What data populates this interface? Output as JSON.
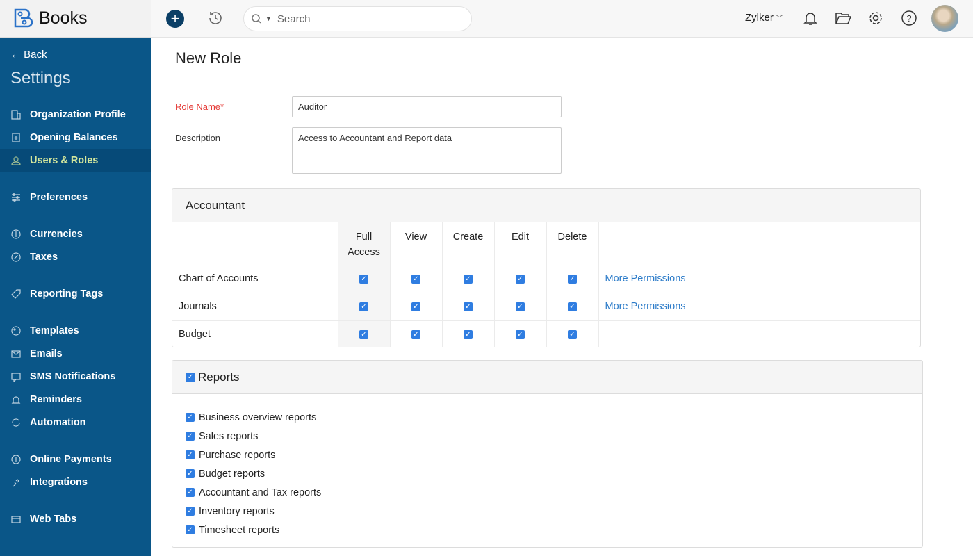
{
  "app": {
    "name": "Books",
    "brand_color": "#0a5688",
    "accent": "#2f7de1"
  },
  "topbar": {
    "search_placeholder": "Search",
    "org": "Zylker",
    "icons": [
      "plus-icon",
      "history-icon",
      "search-icon",
      "bell-icon",
      "folder-icon",
      "gear-icon",
      "help-icon",
      "avatar"
    ]
  },
  "sidebar": {
    "back": "Back",
    "title": "Settings",
    "items": [
      {
        "label": "Organization Profile",
        "icon": "building-icon"
      },
      {
        "label": "Opening Balances",
        "icon": "ledger-icon"
      },
      {
        "label": "Users & Roles",
        "icon": "users-icon",
        "active": true
      },
      {
        "label": "Preferences",
        "icon": "sliders-icon"
      },
      {
        "label": "Currencies",
        "icon": "currency-icon"
      },
      {
        "label": "Taxes",
        "icon": "percent-icon"
      },
      {
        "label": "Reporting Tags",
        "icon": "tag-icon"
      },
      {
        "label": "Templates",
        "icon": "palette-icon"
      },
      {
        "label": "Emails",
        "icon": "mail-icon"
      },
      {
        "label": "SMS Notifications",
        "icon": "sms-icon"
      },
      {
        "label": "Reminders",
        "icon": "bell-icon"
      },
      {
        "label": "Automation",
        "icon": "refresh-icon"
      },
      {
        "label": "Online Payments",
        "icon": "dollar-icon"
      },
      {
        "label": "Integrations",
        "icon": "plug-icon"
      },
      {
        "label": "Web Tabs",
        "icon": "tabs-icon"
      }
    ]
  },
  "page": {
    "title": "New Role",
    "role_name_label": "Role Name*",
    "role_name_value": "Auditor",
    "description_label": "Description",
    "description_value": "Access to Accountant and Report data"
  },
  "accountant": {
    "title": "Accountant",
    "columns": [
      "Full Access",
      "View",
      "Create",
      "Edit",
      "Delete"
    ],
    "rows": [
      {
        "name": "Chart of Accounts",
        "checked": [
          true,
          true,
          true,
          true,
          true
        ],
        "link": "More Permissions"
      },
      {
        "name": "Journals",
        "checked": [
          true,
          true,
          true,
          true,
          true
        ],
        "link": "More Permissions"
      },
      {
        "name": "Budget",
        "checked": [
          true,
          true,
          true,
          true,
          true
        ],
        "link": ""
      }
    ]
  },
  "reports": {
    "title": "Reports",
    "checked": true,
    "items": [
      "Business overview reports",
      "Sales reports",
      "Purchase reports",
      "Budget reports",
      "Accountant and Tax reports",
      "Inventory reports",
      "Timesheet reports"
    ]
  }
}
